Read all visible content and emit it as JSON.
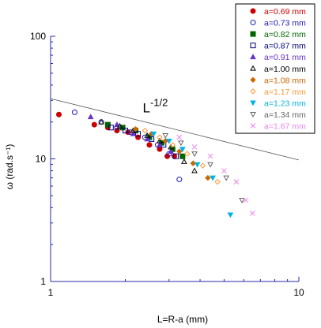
{
  "chart_data": {
    "type": "scatter",
    "xscale": "log",
    "yscale": "log",
    "xlim": [
      1,
      10
    ],
    "ylim": [
      1,
      100
    ],
    "xlabel": "L=R-a (mm)",
    "ylabel": "ω (rad.s⁻¹)",
    "grid": false,
    "legend_position": "top-right",
    "x_ticks": [
      1,
      10
    ],
    "x_tick_labels": [
      "1",
      "10"
    ],
    "y_ticks": [
      1,
      10,
      100
    ],
    "y_tick_labels": [
      "1",
      "10",
      "100"
    ],
    "annotation": {
      "base": "L",
      "exponent": "-1/2",
      "x": 2.35,
      "y": 24
    },
    "reference_line": {
      "points": [
        [
          1,
          31
        ],
        [
          10,
          9.8
        ]
      ]
    },
    "series": [
      {
        "name": "a=0.69 mm",
        "marker": "circle-filled",
        "color": "#cc0000",
        "x": [
          1.08,
          1.5,
          1.7,
          1.85,
          2.05,
          2.25,
          2.5,
          2.75,
          2.95,
          3.15
        ],
        "y": [
          23,
          19,
          18,
          17,
          16.5,
          15,
          13,
          12,
          10.5,
          10.5
        ]
      },
      {
        "name": "a=0.73 mm",
        "marker": "circle-open",
        "color": "#1a1ab3",
        "x": [
          1.25,
          1.6,
          1.85,
          2.1,
          2.4,
          2.7,
          3.0,
          3.3
        ],
        "y": [
          24,
          20,
          18,
          16.5,
          15,
          13,
          11,
          6.8
        ]
      },
      {
        "name": "a=0.82 mm",
        "marker": "square-filled",
        "color": "#006600",
        "x": [
          1.7,
          1.95,
          2.2,
          2.5,
          2.8,
          3.1,
          3.4
        ],
        "y": [
          19,
          18,
          17,
          15,
          13.5,
          12,
          10.5
        ]
      },
      {
        "name": "a=0.87 mm",
        "marker": "square-open",
        "color": "#000080",
        "x": [
          1.75,
          2.0,
          2.25,
          2.55,
          2.85,
          3.2
        ],
        "y": [
          18,
          17,
          16,
          14.5,
          13,
          10.5
        ]
      },
      {
        "name": "a=0.91 mm",
        "marker": "triangle-filled",
        "color": "#6633cc",
        "x": [
          1.45,
          1.85,
          2.15,
          2.45,
          2.75,
          3.05
        ],
        "y": [
          22,
          19,
          16,
          14.5,
          13,
          11.5
        ]
      },
      {
        "name": "a=1.00 mm",
        "marker": "triangle-open",
        "color": "#000000",
        "x": [
          1.6,
          1.9,
          2.15,
          2.45,
          2.75,
          3.05,
          3.45,
          3.8
        ],
        "y": [
          20,
          18.5,
          17,
          15.5,
          14,
          12.5,
          9.5,
          8
        ]
      },
      {
        "name": "a=1.08 mm",
        "marker": "diamond-filled",
        "color": "#cc6600",
        "x": [
          2.2,
          2.55,
          2.9,
          3.3,
          3.75,
          4.3
        ],
        "y": [
          17.5,
          16,
          14,
          11.5,
          9.2,
          7
        ]
      },
      {
        "name": "a=1.17 mm",
        "marker": "diamond-open",
        "color": "#ff9933",
        "x": [
          2.4,
          2.75,
          3.1,
          3.55,
          4.1,
          4.7
        ],
        "y": [
          17,
          15,
          13,
          11,
          8.8,
          6.5
        ]
      },
      {
        "name": "a=1.23 mm",
        "marker": "triangle-down-filled",
        "color": "#00b3e6",
        "x": [
          2.6,
          3.0,
          3.4,
          3.9,
          4.5,
          5.3
        ],
        "y": [
          16,
          14,
          12,
          9,
          7,
          3.5
        ]
      },
      {
        "name": "a=1.34 mm",
        "marker": "triangle-down-open",
        "color": "#666666",
        "x": [
          2.9,
          3.35,
          3.8,
          4.4,
          5.1,
          5.9
        ],
        "y": [
          15.5,
          13.5,
          11,
          9,
          7,
          4.6
        ]
      },
      {
        "name": "a=1.67 mm",
        "marker": "cross",
        "color": "#ee82ee",
        "x": [
          3.3,
          3.8,
          4.4,
          5.0,
          5.6,
          6.1,
          6.5
        ],
        "y": [
          15,
          12.5,
          10.5,
          8,
          6.5,
          4.6,
          3.6
        ]
      }
    ]
  }
}
